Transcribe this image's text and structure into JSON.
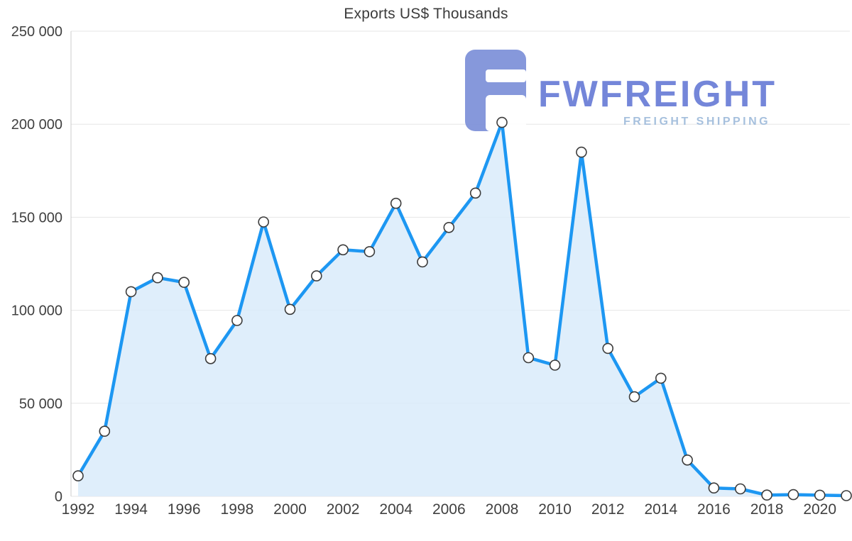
{
  "colors": {
    "line": "#1d97f2",
    "area": "#d9ebfa",
    "marker_fill": "#ffffff",
    "marker_stroke": "#3c3c3c",
    "grid": "#e6e6e6",
    "axis_line": "#cccccc",
    "axis_text": "#404040",
    "title_text": "#3c3c3c",
    "logo": "#8093da",
    "logo_text": "#6d80d8",
    "logo_tagline": "#a2bddc"
  },
  "watermark": {
    "name": "FWFREIGHT",
    "tagline": "FREIGHT SHIPPING"
  },
  "chart_data": {
    "type": "area",
    "title": "Exports US$ Thousands",
    "x": [
      1992,
      1993,
      1994,
      1995,
      1996,
      1997,
      1998,
      1999,
      2000,
      2001,
      2002,
      2003,
      2004,
      2005,
      2006,
      2007,
      2008,
      2009,
      2010,
      2011,
      2012,
      2013,
      2014,
      2015,
      2016,
      2017,
      2018,
      2019,
      2020,
      2021
    ],
    "values": [
      11000,
      35000,
      110000,
      117500,
      115000,
      74000,
      94500,
      147500,
      100500,
      118500,
      132500,
      131500,
      157500,
      126000,
      144500,
      163000,
      201000,
      74500,
      70500,
      185000,
      79500,
      53500,
      63500,
      19500,
      4500,
      4000,
      700,
      900,
      600,
      400
    ],
    "ylim": [
      0,
      250000
    ],
    "y_ticks": [
      0,
      50000,
      100000,
      150000,
      200000,
      250000
    ],
    "y_tick_labels": [
      "0",
      "50 000",
      "100 000",
      "150 000",
      "200 000",
      "250 000"
    ],
    "x_ticks": [
      1992,
      1994,
      1996,
      1998,
      2000,
      2002,
      2004,
      2006,
      2008,
      2010,
      2012,
      2014,
      2016,
      2018,
      2020
    ],
    "xlabel": "",
    "ylabel": "",
    "grid": true,
    "legend": false
  }
}
